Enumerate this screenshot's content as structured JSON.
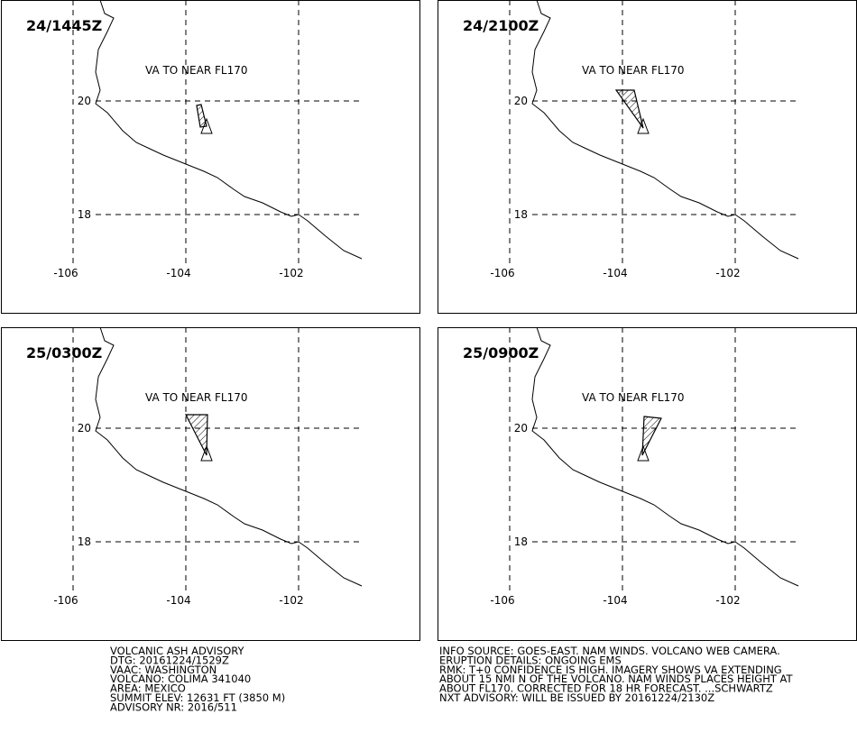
{
  "panels": [
    {
      "time": "24/1445Z",
      "note": "VA TO NEAR FL170"
    },
    {
      "time": "24/2100Z",
      "note": "VA TO NEAR FL170"
    },
    {
      "time": "25/0300Z",
      "note": "VA TO NEAR FL170"
    },
    {
      "time": "25/0900Z",
      "note": "VA TO NEAR FL170"
    }
  ],
  "grid": {
    "lon": [
      -106,
      -104,
      -102
    ],
    "lat": [
      20,
      18
    ]
  },
  "advisory_left": [
    "VOLCANIC ASH ADVISORY",
    "DTG: 20161224/1529Z",
    "VAAC: WASHINGTON",
    "VOLCANO: COLIMA 341040",
    "AREA: MEXICO",
    "SUMMIT ELEV: 12631 FT (3850 M)",
    "ADVISORY NR: 2016/511"
  ],
  "advisory_right": [
    "INFO SOURCE: GOES-EAST. NAM WINDS. VOLCANO WEB CAMERA.",
    "ERUPTION DETAILS: ONGOING EMS",
    "RMK: T+0 CONFIDENCE IS HIGH. IMAGERY SHOWS VA EXTENDING",
    "ABOUT 15 NMI N OF THE VOLCANO. NAM WINDS PLACES HEIGHT AT",
    "ABOUT FL170. CORRECTED FOR 18 HR FORECAST. ...SCHWARTZ",
    "NXT ADVISORY: WILL BE ISSUED BY 20161224/2130Z"
  ]
}
